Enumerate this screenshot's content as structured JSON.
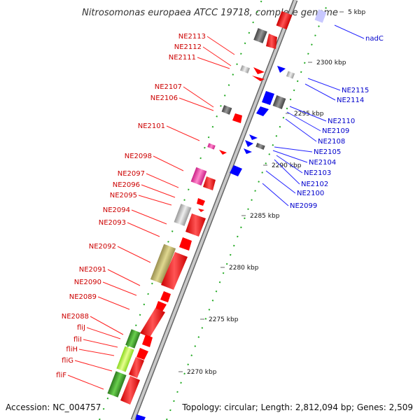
{
  "title": "Nitrosomonas europaea ATCC 19718, complete genome",
  "footer": {
    "accession": "Accession: NC_004757",
    "info": "Topology: circular; Length: 2,812,094 bp; Genes: 2,509"
  },
  "ticks": [
    "2270 kbp",
    "2275 kbp",
    "2280 kbp",
    "2285 kbp",
    "2290 kbp",
    "2295 kbp",
    "2300 kbp",
    "5 kbp"
  ],
  "left_labels": [
    "NE2113",
    "NE2112",
    "NE2111",
    "NE2107",
    "NE2106",
    "NE2101",
    "NE2098",
    "NE2097",
    "NE2096",
    "NE2095",
    "NE2094",
    "NE2093",
    "NE2092",
    "NE2091",
    "NE2090",
    "NE2089",
    "NE2088",
    "fliJ",
    "fliI",
    "fliH",
    "fliG",
    "fliF"
  ],
  "right_labels": [
    "nadC",
    "NE2115",
    "NE2114",
    "NE2110",
    "NE2109",
    "NE2108",
    "NE2105",
    "NE2104",
    "NE2103",
    "NE2102",
    "NE2100",
    "NE2099"
  ],
  "colors": {
    "forward_label": "#cc0000",
    "reverse_label": "#0000cc",
    "forward_gene": "#ff0000",
    "reverse_gene": "#0000ff",
    "backbone": "#aaaaaa",
    "gc_marks": "#228822"
  }
}
